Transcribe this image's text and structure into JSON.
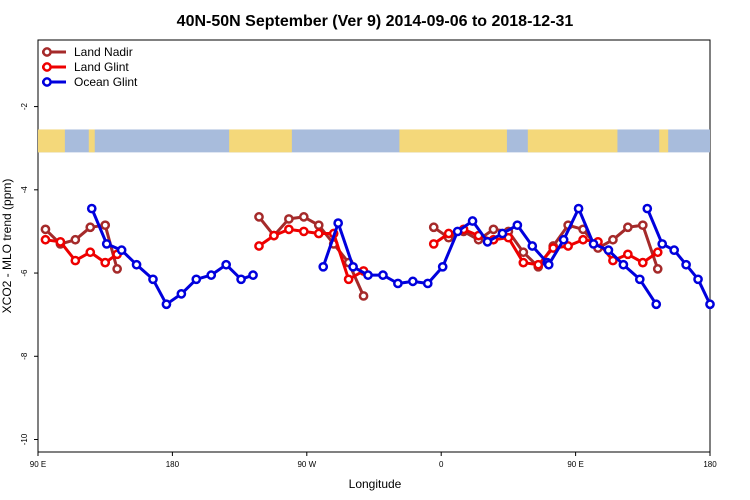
{
  "chart_data": {
    "type": "line",
    "title": "40N-50N September (Ver 9)   2014-09-06 to 2018-12-31",
    "xlabel": "Longitude",
    "ylabel": "XCO2 - MLO trend (ppm)",
    "x_ticks": [
      {
        "value": 90,
        "label": "90 E"
      },
      {
        "value": 180,
        "label": "180"
      },
      {
        "value": 270,
        "label": "90 W"
      },
      {
        "value": 360,
        "label": "0"
      },
      {
        "value": 450,
        "label": "90 E"
      },
      {
        "value": 540,
        "label": "180"
      }
    ],
    "y_ticks": [
      -2,
      -4,
      -6,
      -8,
      -10
    ],
    "xlim": [
      90,
      540
    ],
    "ylim": [
      -10.3,
      -0.4
    ],
    "map_strip_y": [
      -2.55,
      -3.1
    ],
    "grid": false,
    "legend_position": "top-left",
    "series": [
      {
        "name": "Land Nadir",
        "color": "#a52a2a",
        "segments": [
          [
            [
              95,
              -4.95
            ],
            [
              105,
              -5.3
            ],
            [
              115,
              -5.2
            ],
            [
              125,
              -4.9
            ],
            [
              135,
              -4.85
            ],
            [
              143,
              -5.9
            ]
          ],
          [
            [
              238,
              -4.65
            ],
            [
              248,
              -5.1
            ],
            [
              258,
              -4.7
            ],
            [
              268,
              -4.65
            ],
            [
              278,
              -4.85
            ],
            [
              288,
              -5.3
            ],
            [
              298,
              -5.75
            ],
            [
              308,
              -6.55
            ]
          ],
          [
            [
              355,
              -4.9
            ],
            [
              365,
              -5.15
            ],
            [
              375,
              -5.0
            ],
            [
              385,
              -5.2
            ],
            [
              395,
              -4.95
            ],
            [
              405,
              -5.0
            ],
            [
              415,
              -5.5
            ],
            [
              425,
              -5.85
            ],
            [
              435,
              -5.35
            ],
            [
              445,
              -4.85
            ],
            [
              455,
              -4.95
            ],
            [
              465,
              -5.4
            ],
            [
              475,
              -5.2
            ],
            [
              485,
              -4.9
            ],
            [
              495,
              -4.85
            ],
            [
              505,
              -5.9
            ]
          ]
        ]
      },
      {
        "name": "Land Glint",
        "color": "#ee0000",
        "segments": [
          [
            [
              95,
              -5.2
            ],
            [
              105,
              -5.25
            ],
            [
              115,
              -5.7
            ],
            [
              125,
              -5.5
            ],
            [
              135,
              -5.75
            ],
            [
              143,
              -5.55
            ]
          ],
          [
            [
              238,
              -5.35
            ],
            [
              248,
              -5.1
            ],
            [
              258,
              -4.95
            ],
            [
              268,
              -5.0
            ],
            [
              278,
              -5.05
            ],
            [
              288,
              -5.05
            ],
            [
              298,
              -6.15
            ],
            [
              308,
              -5.95
            ]
          ],
          [
            [
              355,
              -5.3
            ],
            [
              365,
              -5.05
            ],
            [
              375,
              -4.95
            ],
            [
              385,
              -5.1
            ],
            [
              395,
              -5.2
            ],
            [
              405,
              -5.15
            ],
            [
              415,
              -5.75
            ],
            [
              425,
              -5.8
            ],
            [
              435,
              -5.4
            ],
            [
              445,
              -5.35
            ],
            [
              455,
              -5.2
            ],
            [
              465,
              -5.25
            ],
            [
              475,
              -5.7
            ],
            [
              485,
              -5.55
            ],
            [
              495,
              -5.75
            ],
            [
              505,
              -5.5
            ]
          ]
        ]
      },
      {
        "name": "Ocean Glint",
        "color": "#0000dd",
        "segments": [
          [
            [
              126,
              -4.45
            ],
            [
              136,
              -5.3
            ],
            [
              146,
              -5.45
            ],
            [
              156,
              -5.8
            ],
            [
              167,
              -6.15
            ],
            [
              176,
              -6.75
            ],
            [
              186,
              -6.5
            ],
            [
              196,
              -6.15
            ],
            [
              206,
              -6.05
            ],
            [
              216,
              -5.8
            ],
            [
              226,
              -6.15
            ],
            [
              234,
              -6.05
            ]
          ],
          [
            [
              281,
              -5.85
            ],
            [
              291,
              -4.8
            ],
            [
              301,
              -5.85
            ],
            [
              311,
              -6.05
            ],
            [
              321,
              -6.05
            ],
            [
              331,
              -6.25
            ],
            [
              341,
              -6.2
            ],
            [
              351,
              -6.25
            ],
            [
              361,
              -5.85
            ],
            [
              371,
              -5.0
            ],
            [
              381,
              -4.75
            ],
            [
              391,
              -5.25
            ],
            [
              401,
              -5.05
            ],
            [
              411,
              -4.85
            ],
            [
              421,
              -5.35
            ],
            [
              431,
              -5.75
            ]
          ],
          [
            [
              432,
              -5.8
            ],
            [
              442,
              -5.2
            ],
            [
              452,
              -4.45
            ],
            [
              462,
              -5.3
            ],
            [
              472,
              -5.45
            ],
            [
              482,
              -5.8
            ],
            [
              493,
              -6.15
            ],
            [
              504,
              -6.75
            ]
          ],
          [
            [
              498,
              -4.45
            ],
            [
              508,
              -5.3
            ],
            [
              516,
              -5.45
            ],
            [
              524,
              -5.8
            ],
            [
              532,
              -6.15
            ],
            [
              540,
              -6.75
            ]
          ]
        ]
      }
    ]
  }
}
